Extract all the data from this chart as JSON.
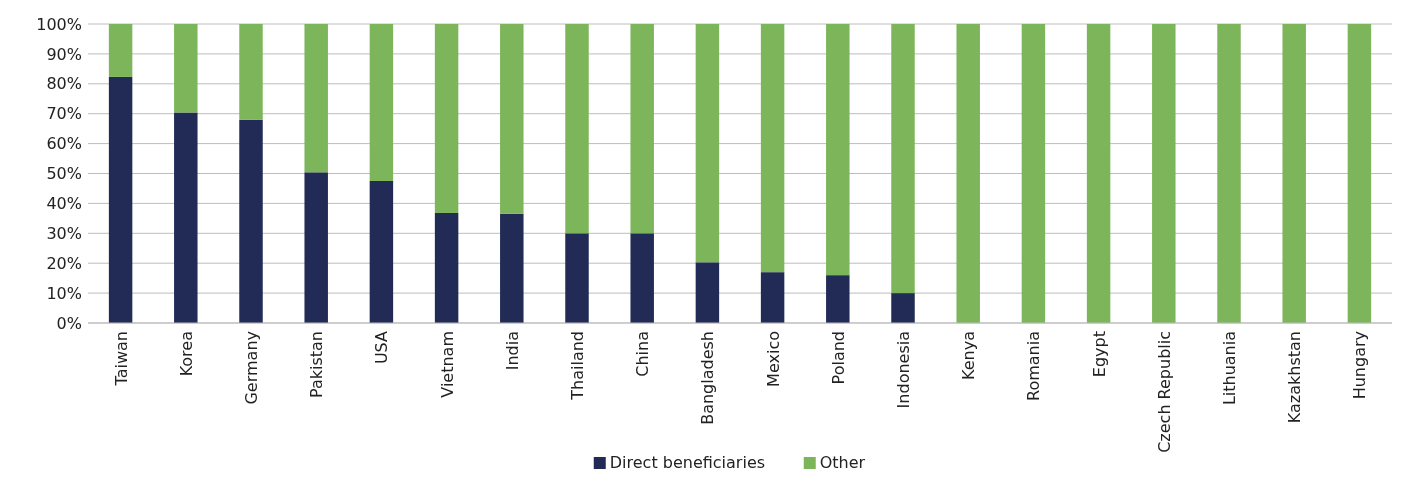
{
  "chart_data": {
    "type": "bar",
    "stacked": true,
    "categories": [
      "Taiwan",
      "Korea",
      "Germany",
      "Pakistan",
      "USA",
      "Vietnam",
      "India",
      "Thailand",
      "China",
      "Bangladesh",
      "Mexico",
      "Poland",
      "Indonesia",
      "Kenya",
      "Romania",
      "Egypt",
      "Czech Republic",
      "Lithuania",
      "Kazakhstan",
      "Hungary"
    ],
    "series": [
      {
        "name": "Direct beneficiaries",
        "color": "#212b55",
        "values": [
          82.3,
          70.4,
          68,
          50.4,
          47.5,
          36.8,
          36.5,
          30,
          30,
          20.3,
          17,
          16,
          10,
          0,
          0,
          0,
          0,
          0,
          0,
          0
        ]
      },
      {
        "name": "Other",
        "color": "#7db55a",
        "values": [
          17.7,
          29.6,
          32,
          49.6,
          52.5,
          63.2,
          63.5,
          70,
          70,
          79.7,
          83,
          84,
          90,
          100,
          100,
          100,
          100,
          100,
          100,
          100
        ]
      }
    ],
    "ylim": [
      0,
      100
    ],
    "yticks": [
      {
        "value": 0,
        "label": "0%"
      },
      {
        "value": 10,
        "label": "10%"
      },
      {
        "value": 20,
        "label": "20%"
      },
      {
        "value": 30,
        "label": "30%"
      },
      {
        "value": 40,
        "label": "40%"
      },
      {
        "value": 50,
        "label": "50%"
      },
      {
        "value": 60,
        "label": "60%"
      },
      {
        "value": 70,
        "label": "70%"
      },
      {
        "value": 80,
        "label": "80%"
      },
      {
        "value": 90,
        "label": "90%"
      },
      {
        "value": 100,
        "label": "100%"
      }
    ],
    "grid": "y",
    "legend": "bottom"
  }
}
